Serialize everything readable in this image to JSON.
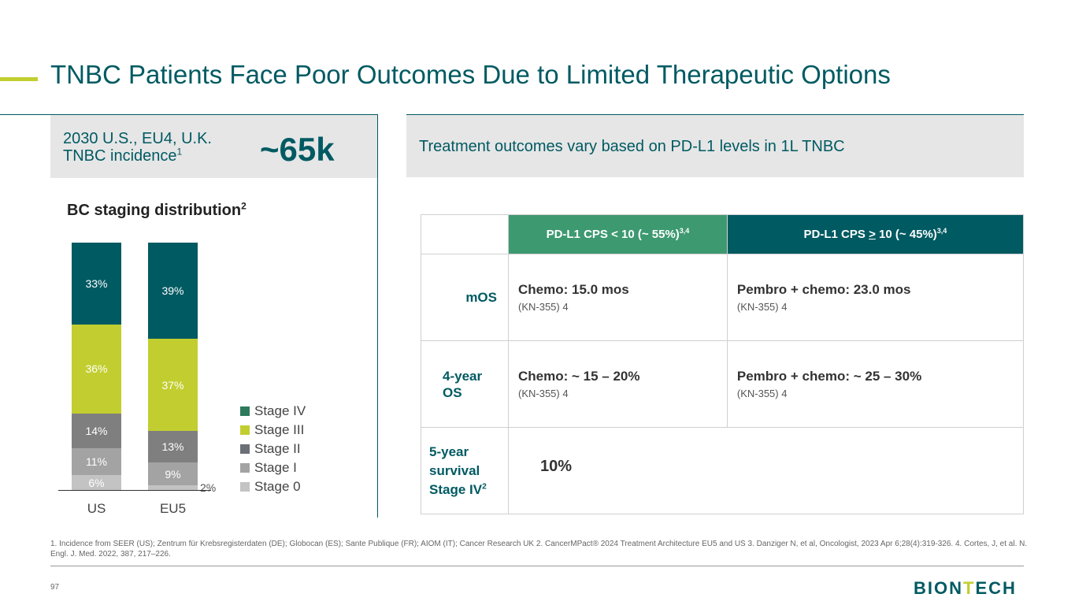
{
  "title": "TNBC Patients Face Poor Outcomes Due to Limited Therapeutic Options",
  "incidence": {
    "label_line1": "2030 U.S., EU4, U.K.",
    "label_line2": "TNBC incidence",
    "label_sup": "1",
    "value": "~65k"
  },
  "outcomes_header": "Treatment outcomes vary based on PD-L1 levels in 1L TNBC",
  "chart_data": {
    "type": "bar",
    "stacked": true,
    "title": "BC staging distribution",
    "title_sup": "2",
    "categories": [
      "US",
      "EU5"
    ],
    "series": [
      {
        "name": "Stage 0",
        "values": [
          6,
          2
        ],
        "color": "#c3c3c3"
      },
      {
        "name": "Stage I",
        "values": [
          11,
          9
        ],
        "color": "#a3a3a3"
      },
      {
        "name": "Stage II",
        "values": [
          14,
          13
        ],
        "color": "#7f7f7f"
      },
      {
        "name": "Stage III",
        "values": [
          36,
          37
        ],
        "color": "#c2ce2f"
      },
      {
        "name": "Stage IV",
        "values": [
          33,
          39
        ],
        "color": "#005a62"
      }
    ],
    "legend": [
      "Stage IV",
      "Stage III",
      "Stage II",
      "Stage I",
      "Stage 0"
    ],
    "legend_placement": "right",
    "ylim": [
      0,
      100
    ]
  },
  "table": {
    "headers": [
      {
        "text": "PD-L1 CPS < 10  (~ 55%)",
        "sup": "3,4",
        "color": "#3d9970"
      },
      {
        "text_a": "PD-L1 CPS ",
        "underlined": ">",
        "text_b": " 10 (~ 45%)",
        "sup": "3,4",
        "color": "#005a62"
      }
    ],
    "rows": [
      {
        "label": "mOS",
        "c1": "Chemo: 15.0 mos",
        "c1s": "(KN-355) 4",
        "c2": "Pembro + chemo: 23.0 mos",
        "c2s": "(KN-355) 4"
      },
      {
        "label_a": "4-year",
        "label_b": "OS",
        "c1": "Chemo: ~ 15 – 20%",
        "c1s": "(KN-355) 4",
        "c2": "Pembro + chemo: ~ 25 – 30%",
        "c2s": "(KN-355) 4"
      },
      {
        "label_a": "5-year",
        "label_b": "survival",
        "label_c": "Stage IV",
        "label_sup": "2",
        "value": "10%"
      }
    ]
  },
  "footnote": "1. Incidence from SEER (US); Zentrum für Krebsregisterdaten (DE); Globocan (ES); Sante Publique (FR); AIOM (IT); Cancer Research UK  2. CancerMPact® 2024 Treatment Architecture EU5 and US 3. Danziger N, et al, Oncologist, 2023 Apr 6;28(4):319-326. 4. Cortes, J, et al. N. Engl. J. Med. 2022, 387, 217–226.",
  "page_number": "97",
  "logo": {
    "a": "BION",
    "b": "T",
    "c": "ECH"
  }
}
